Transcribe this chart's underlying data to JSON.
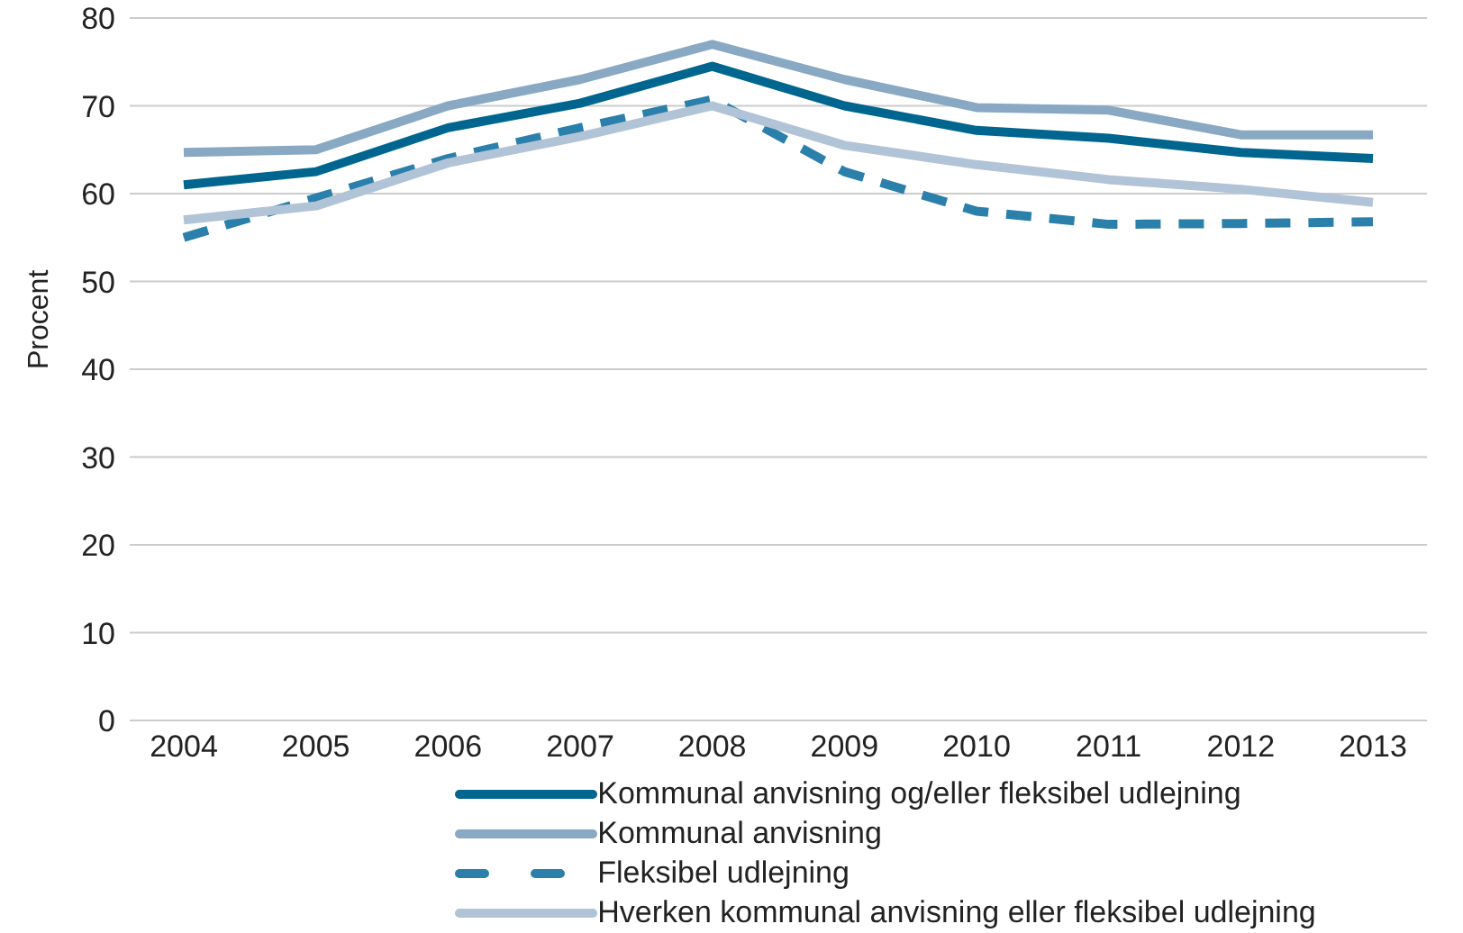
{
  "chart_data": {
    "type": "line",
    "ylabel": "Procent",
    "categories": [
      "2004",
      "2005",
      "2006",
      "2007",
      "2008",
      "2009",
      "2010",
      "2011",
      "2012",
      "2013"
    ],
    "series": [
      {
        "name": "Kommunal anvisning og/eller fleksibel udlejning",
        "color": "#00668f",
        "values": [
          61,
          62.5,
          67.5,
          70.3,
          74.5,
          70,
          67.2,
          66.3,
          64.7,
          64
        ]
      },
      {
        "name": "Kommunal anvisning",
        "color": "#88a8c3",
        "values": [
          64.7,
          65,
          70,
          73,
          77,
          73,
          69.8,
          69.5,
          66.7,
          66.7
        ]
      },
      {
        "name": "Fleksibel udlejning",
        "color": "#2a7fab",
        "line_style": "dashed",
        "values": [
          55,
          59.5,
          64,
          67.5,
          70.7,
          62.5,
          58,
          56.5,
          56.6,
          56.8
        ]
      },
      {
        "name": "Hverken kommunal anvisning eller fleksibel udlejning",
        "color": "#b1c3d6",
        "values": [
          57,
          58.6,
          63.5,
          66.5,
          70,
          65.5,
          63.3,
          61.6,
          60.5,
          59
        ]
      }
    ],
    "ylim": [
      0,
      80
    ],
    "yticks": [
      0,
      10,
      20,
      30,
      40,
      50,
      60,
      70,
      80
    ],
    "grid": "y",
    "legend": "bottom",
    "marker": "none",
    "line_style": "solid"
  }
}
